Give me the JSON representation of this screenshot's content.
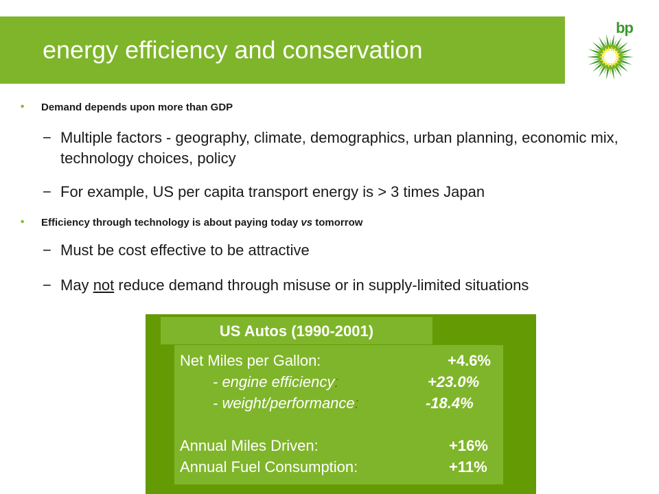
{
  "title": "energy efficiency and conservation",
  "logo": {
    "text": "bp",
    "icon": "helios-sunflower-icon"
  },
  "bullets": [
    {
      "text": "Demand depends upon more than GDP",
      "subitems": [
        "Multiple factors - geography, climate, demographics, urban planning, economic mix, technology choices, policy",
        "For example, US per capita transport energy is > 3 times Japan"
      ]
    },
    {
      "text_before": "Efficiency through technology is about paying today ",
      "text_em": "vs",
      "text_after": " tomorrow",
      "subitems": [
        "Must be cost effective to be attractive"
      ],
      "subitem_underlined": {
        "before": "May ",
        "underlined": "not",
        "after": " reduce demand through misuse or in supply-limited situations"
      }
    }
  ],
  "box": {
    "heading": "US Autos (1990-2001)",
    "rows": [
      {
        "label": "Net Miles per Gallon:",
        "value": "+4.6%"
      },
      {
        "label": "- engine efficiency",
        "colon": ":",
        "value": "+23.0%"
      },
      {
        "label": "- weight/performance",
        "colon": ":",
        "value": "-18.4%"
      },
      {
        "label": "Annual Miles Driven:",
        "value": "+16%"
      },
      {
        "label": "Annual Fuel Consumption:",
        "value": "+11%"
      }
    ]
  },
  "colors": {
    "brand_green": "#7fb52a",
    "dark_green": "#649a04",
    "logo_green": "#3a9a2e",
    "logo_yellow": "#ffe400"
  }
}
